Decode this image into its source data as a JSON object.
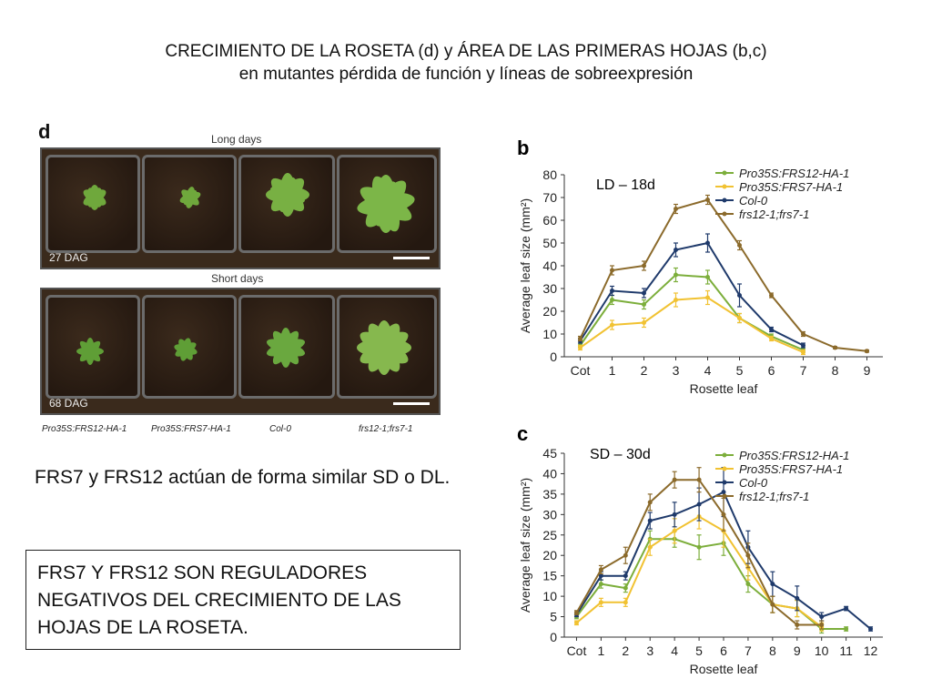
{
  "title": {
    "line1": "CRECIMIENTO DE LA ROSETA (d) y ÁREA DE LAS PRIMERAS HOJAS (b,c)",
    "line2": "en mutantes pérdida de función y líneas de sobreexpresión"
  },
  "photo_panel": {
    "letter": "d",
    "long_label": "Long days",
    "short_label": "Short days",
    "long_dag": "27 DAG",
    "short_dag": "68 DAG",
    "genotypes": [
      "Pro35S:FRS12-HA-1",
      "Pro35S:FRS7-HA-1",
      "Col-0",
      "frs12-1;frs7-1"
    ]
  },
  "text": {
    "statement": "FRS7 y FRS12 actúan de forma similar SD o DL.",
    "conclusion": "FRS7 Y FRS12 SON REGULADORES NEGATIVOS DEL CRECIMIENTO DE LAS HOJAS DE LA ROSETA."
  },
  "colors": {
    "frs12_ox": "#7cae3b",
    "frs7_ox": "#f1c232",
    "col0": "#1f3a6b",
    "double_mutant": "#8b6a2b"
  },
  "chart_data": [
    {
      "type": "line",
      "panel": "b",
      "annotation": "LD – 18d",
      "xlabel": "Rosette leaf",
      "ylabel": "Average leaf size (mm²)",
      "categories": [
        "Cot",
        "1",
        "2",
        "3",
        "4",
        "5",
        "6",
        "7",
        "8",
        "9"
      ],
      "ylim": [
        0,
        80
      ],
      "yticks": [
        0,
        10,
        20,
        30,
        40,
        50,
        60,
        70,
        80
      ],
      "legend_position": "top-right",
      "series": [
        {
          "name": "Pro35S:FRS12-HA-1",
          "color": "#7cae3b",
          "values": [
            5,
            25,
            23,
            36,
            35,
            17,
            9,
            3,
            null,
            null
          ],
          "errors": [
            1,
            2,
            2,
            3,
            3,
            2,
            1,
            1,
            null,
            null
          ]
        },
        {
          "name": "Pro35S:FRS7-HA-1",
          "color": "#f1c232",
          "values": [
            4,
            14,
            15,
            25,
            26,
            17,
            8,
            2,
            null,
            null
          ],
          "errors": [
            1,
            2,
            2,
            3,
            3,
            2,
            1,
            1,
            null,
            null
          ]
        },
        {
          "name": "Col-0",
          "color": "#1f3a6b",
          "values": [
            7,
            29,
            28,
            47,
            50,
            27,
            12,
            5,
            null,
            null
          ],
          "errors": [
            1,
            2,
            2,
            3,
            4,
            5,
            1,
            1,
            null,
            null
          ]
        },
        {
          "name": "frs12-1;frs7-1",
          "color": "#8b6a2b",
          "values": [
            8,
            38,
            40,
            65,
            69,
            49,
            27,
            10,
            4,
            2.5
          ],
          "errors": [
            1,
            2,
            2,
            2,
            2,
            2,
            1,
            1,
            0.5,
            0.5
          ]
        }
      ]
    },
    {
      "type": "line",
      "panel": "c",
      "annotation": "SD – 30d",
      "xlabel": "Rosette leaf",
      "ylabel": "Average leaf size (mm²)",
      "categories": [
        "Cot",
        "1",
        "2",
        "3",
        "4",
        "5",
        "6",
        "7",
        "8",
        "9",
        "10",
        "11",
        "12"
      ],
      "ylim": [
        0,
        45
      ],
      "yticks": [
        0,
        5,
        10,
        15,
        20,
        25,
        30,
        35,
        40,
        45
      ],
      "legend_position": "top-right",
      "series": [
        {
          "name": "Pro35S:FRS12-HA-1",
          "color": "#7cae3b",
          "values": [
            5,
            13,
            12,
            24,
            24,
            22,
            23,
            13,
            8,
            7,
            2,
            2,
            null
          ],
          "errors": [
            0.5,
            1,
            1,
            2,
            2,
            3,
            3,
            2,
            2,
            2,
            1,
            0.5,
            null
          ]
        },
        {
          "name": "Pro35S:FRS7-HA-1",
          "color": "#f1c232",
          "values": [
            3.5,
            8.5,
            8.5,
            22,
            26,
            29.5,
            26,
            17,
            8,
            7,
            2.5,
            null,
            null
          ],
          "errors": [
            0.5,
            1,
            1,
            2,
            3,
            3,
            4,
            3,
            2,
            2,
            1,
            null,
            null
          ]
        },
        {
          "name": "Col-0",
          "color": "#1f3a6b",
          "values": [
            5.5,
            15,
            15,
            28.5,
            30,
            32.5,
            35.5,
            22,
            13,
            9.5,
            5,
            7,
            2
          ],
          "errors": [
            0.5,
            1,
            1,
            2,
            3,
            4,
            6,
            4,
            3,
            3,
            1,
            0.5,
            0.5
          ]
        },
        {
          "name": "frs12-1;frs7-1",
          "color": "#8b6a2b",
          "values": [
            6,
            16.5,
            20,
            33,
            38.5,
            38.5,
            30,
            20,
            8,
            3,
            3,
            null,
            null
          ],
          "errors": [
            0.5,
            1,
            2,
            2,
            2,
            3,
            4,
            3,
            2,
            1,
            1,
            null,
            null
          ]
        }
      ]
    }
  ]
}
